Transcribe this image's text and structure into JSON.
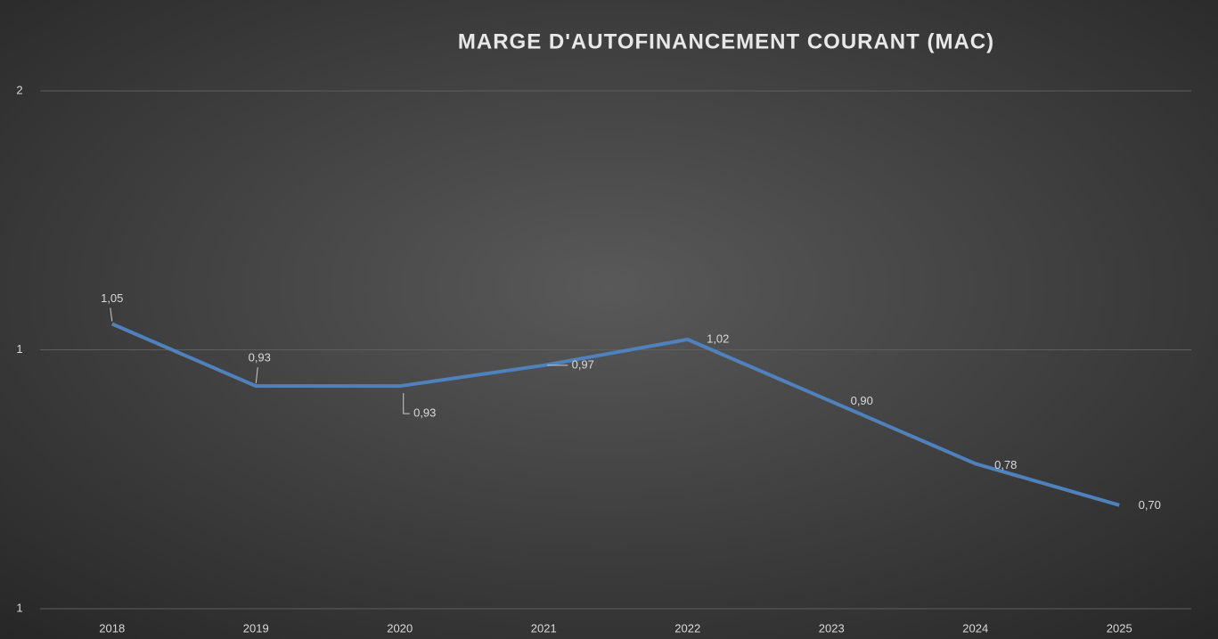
{
  "chart_data": {
    "type": "line",
    "title": "MARGE D'AUTOFINANCEMENT COURANT (MAC)",
    "categories": [
      "2018",
      "2019",
      "2020",
      "2021",
      "2022",
      "2023",
      "2024",
      "2025"
    ],
    "series": [
      {
        "name": "MAC",
        "color": "#4f81bd",
        "values": [
          1.05,
          0.93,
          0.93,
          0.97,
          1.02,
          0.9,
          0.78,
          0.7
        ],
        "value_labels": [
          "1,05",
          "0,93",
          "0,93",
          "0,97",
          "1,02",
          "0,90",
          "0,78",
          "0,70"
        ]
      }
    ],
    "ylim": [
      0.5,
      1.5
    ],
    "yticks": [
      {
        "value": 0.5,
        "label": "1"
      },
      {
        "value": 1,
        "label": "1"
      },
      {
        "value": 1.5,
        "label": "2"
      }
    ],
    "grid": true
  }
}
